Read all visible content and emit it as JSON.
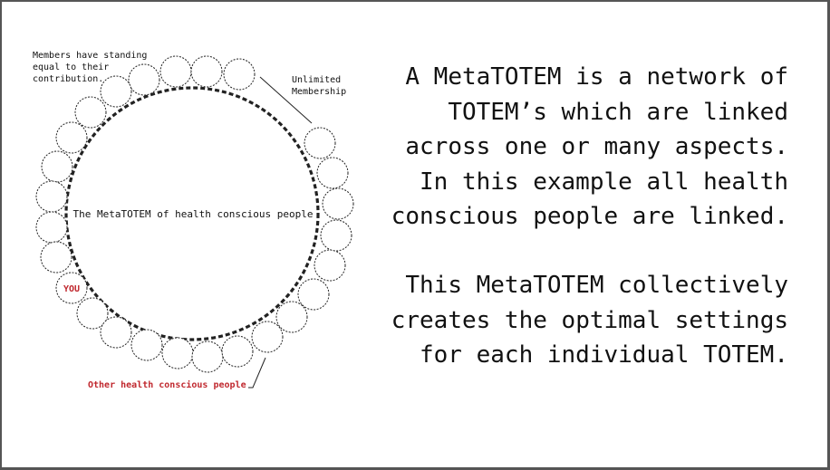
{
  "diagram": {
    "center_label": "The MetaTOTEM of health conscious people",
    "you_label": "YOU",
    "members_note_lines": [
      "Members have standing",
      "equal to their",
      "contribution."
    ],
    "membership_lines": [
      "Unlimited",
      "Membership"
    ],
    "others_label": "Other health conscious people",
    "colors": {
      "accent": "#c0282e",
      "ink": "#111111"
    }
  },
  "text": {
    "paragraph1": "A MetaTOTEM is a network of\nTOTEM’s which are linked\nacross one or many aspects.\nIn this example all health\nconscious people are linked.",
    "paragraph2": "This MetaTOTEM collectively\ncreates the optimal settings\nfor each individual TOTEM."
  }
}
